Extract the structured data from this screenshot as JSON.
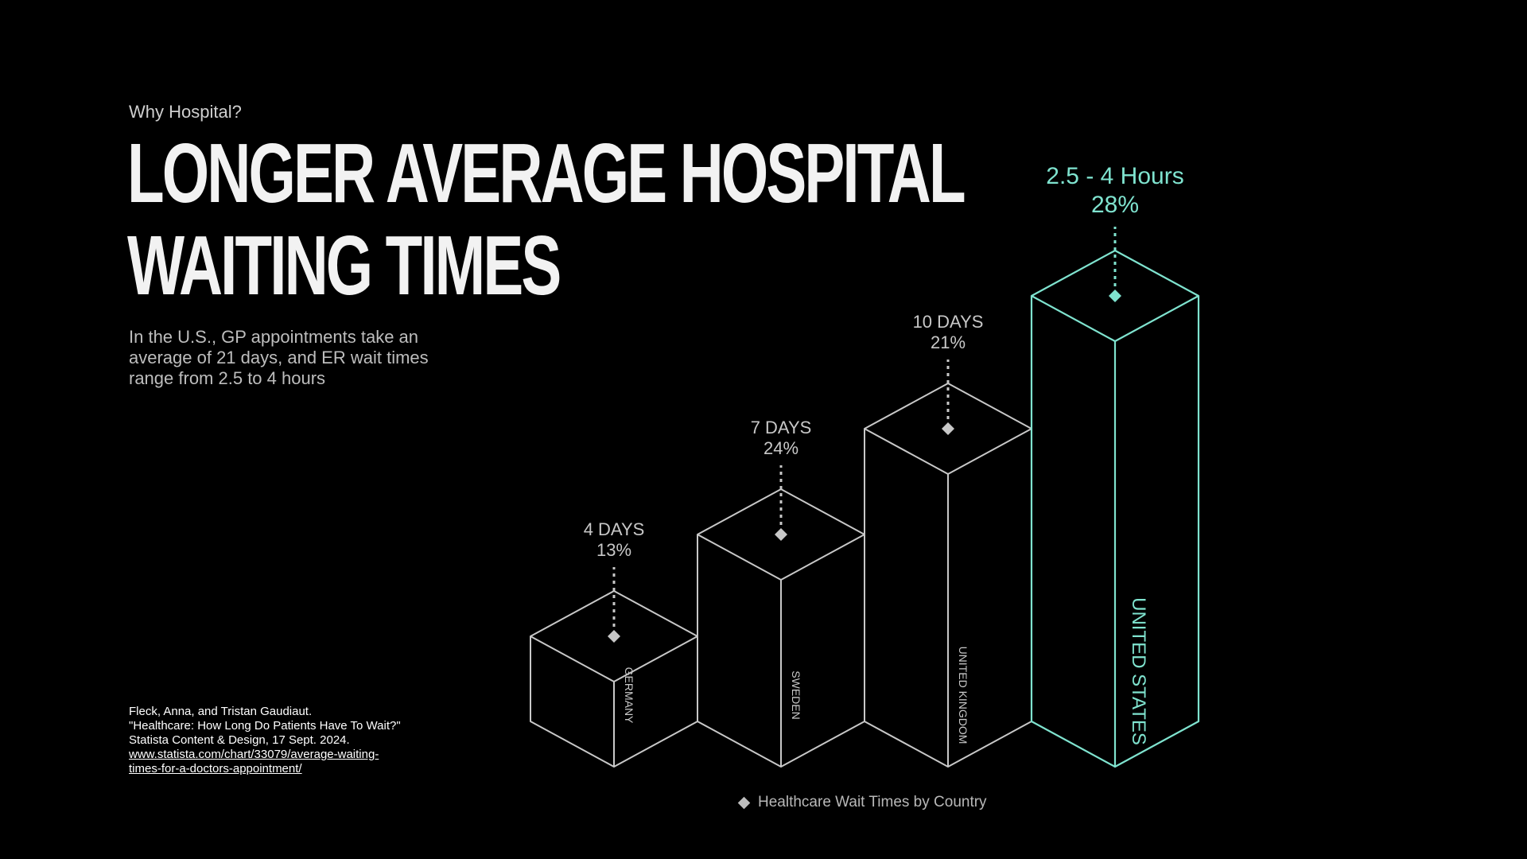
{
  "header": {
    "eyebrow": "Why Hospital?",
    "title_line1": "LONGER AVERAGE HOSPITAL",
    "title_line2": "WAITING TIMES",
    "subtitle": "In the U.S., GP appointments take an average of 21 days, and ER wait times range from 2.5 to 4 hours"
  },
  "citation": {
    "line1": "Fleck, Anna, and Tristan Gaudiaut.",
    "line2": "\"Healthcare: How Long Do Patients Have To Wait?\"",
    "line3": "Statista Content & Design, 17 Sept. 2024.",
    "link_line1": "www.statista.com/chart/33079/average-waiting-",
    "link_line2": "times-for-a-doctors-appointment/"
  },
  "legend": {
    "label": "Healthcare Wait Times by Country"
  },
  "colors": {
    "background": "#000000",
    "bar_stroke": "#c8c8c8",
    "highlight": "#7fe3cf",
    "text_muted": "#bdbdbd"
  },
  "chart_data": {
    "type": "bar",
    "categories": [
      "GERMANY",
      "SWEDEN",
      "UNITED KINGDOM",
      "UNITED STATES"
    ],
    "wait_labels": [
      "4 DAYS",
      "7 DAYS",
      "10 DAYS",
      "2.5 - 4 Hours"
    ],
    "percent_labels": [
      "13%",
      "24%",
      "21%",
      "28%"
    ],
    "values": [
      13,
      24,
      21,
      28
    ],
    "highlight_index": 3,
    "legend_label": "Healthcare Wait Times by Country",
    "style": "isometric-3d-bars"
  }
}
